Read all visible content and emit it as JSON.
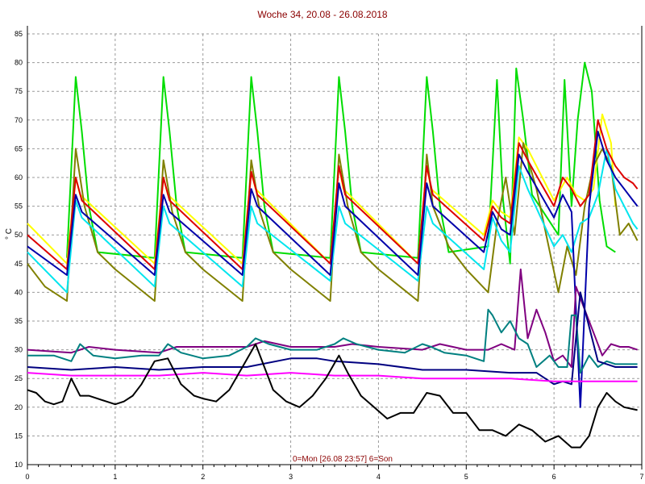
{
  "chart_data": {
    "type": "line",
    "title": "Woche 34, 20.08 - 26.08.2018",
    "xlabel": "0=Mon [26.08 23:57] 6=Son",
    "ylabel": "° C",
    "xlim": [
      0,
      7
    ],
    "ylim": [
      10,
      85
    ],
    "x_ticks": [
      "0",
      "1",
      "2",
      "3",
      "4",
      "5",
      "6",
      "7"
    ],
    "y_ticks": [
      "10",
      "15",
      "20",
      "25",
      "30",
      "35",
      "40",
      "45",
      "50",
      "55",
      "60",
      "65",
      "70",
      "75",
      "80",
      "85"
    ],
    "grid": true,
    "series": [
      {
        "color": "#00dd00",
        "x": [
          0.45,
          0.55,
          0.62,
          0.7,
          0.8,
          1.45,
          1.55,
          1.62,
          1.7,
          1.8,
          2.45,
          2.55,
          2.62,
          2.7,
          2.8,
          3.45,
          3.55,
          3.62,
          3.7,
          3.8,
          4.45,
          4.55,
          4.62,
          4.7,
          4.8,
          5.25,
          5.35,
          5.42,
          5.5,
          5.57,
          5.65,
          5.75,
          6.05,
          6.12,
          6.2,
          6.27,
          6.35,
          6.43,
          6.52,
          6.6,
          6.7
        ],
        "y": [
          46,
          77.5,
          68,
          55,
          47,
          46,
          77.5,
          68,
          55,
          47,
          46,
          77.5,
          68,
          55,
          47,
          46,
          77.5,
          68,
          55,
          47,
          46,
          77.5,
          68,
          55,
          47,
          48,
          77,
          56,
          45,
          79,
          70,
          57,
          50,
          77,
          55,
          70,
          80,
          75,
          56,
          48,
          47
        ]
      },
      {
        "color": "#ffff00",
        "x": [
          0,
          0.45,
          0.55,
          0.6,
          1.45,
          1.55,
          1.6,
          2.45,
          2.55,
          2.6,
          3.45,
          3.55,
          3.6,
          4.45,
          4.55,
          4.6,
          5.2,
          5.3,
          5.4,
          5.5,
          5.6,
          5.7,
          6.0,
          6.15,
          6.25,
          6.35,
          6.45,
          6.55,
          6.65,
          6.7
        ],
        "y": [
          52,
          45,
          60,
          57,
          45,
          60,
          57,
          45,
          61,
          58,
          45,
          62,
          58,
          45,
          62,
          58,
          50,
          56,
          54,
          53,
          67,
          65,
          56,
          60,
          57,
          56,
          58,
          71,
          66,
          55
        ]
      },
      {
        "color": "#808000",
        "x": [
          0,
          0.2,
          0.45,
          0.55,
          0.65,
          0.8,
          1.0,
          1.45,
          1.55,
          1.65,
          1.8,
          2.0,
          2.45,
          2.55,
          2.65,
          2.8,
          3.0,
          3.45,
          3.55,
          3.65,
          3.8,
          4.0,
          4.45,
          4.55,
          4.62,
          4.8,
          5.0,
          5.25,
          5.35,
          5.45,
          5.55,
          5.65,
          5.8,
          6.05,
          6.15,
          6.25,
          6.35,
          6.45,
          6.55,
          6.65,
          6.75,
          6.85,
          6.95
        ],
        "y": [
          45,
          41,
          38.5,
          65,
          55,
          47,
          44,
          38.5,
          63,
          54,
          47,
          44,
          38.5,
          63,
          54,
          47,
          44,
          38.5,
          64,
          55,
          47,
          44,
          38.5,
          64,
          55,
          48,
          44,
          40,
          52,
          60,
          50,
          66,
          58,
          40,
          48,
          43,
          55,
          62,
          65,
          62,
          50,
          52,
          49
        ]
      },
      {
        "color": "#00e5ee",
        "x": [
          0,
          0.45,
          0.55,
          0.62,
          1.45,
          1.55,
          1.62,
          2.45,
          2.55,
          2.62,
          3.45,
          3.55,
          3.62,
          4.45,
          4.55,
          4.62,
          5.2,
          5.3,
          5.4,
          5.5,
          5.6,
          5.7,
          6.0,
          6.1,
          6.2,
          6.3,
          6.4,
          6.5,
          6.6,
          6.7,
          6.8,
          6.9,
          6.95
        ],
        "y": [
          47,
          40,
          56,
          53,
          41,
          55,
          52,
          41,
          55,
          52,
          42,
          55,
          52,
          42,
          55,
          52,
          44,
          53,
          49,
          47,
          62,
          58,
          48,
          50,
          47,
          52,
          53,
          57,
          65,
          58,
          55,
          52,
          51
        ]
      },
      {
        "color": "#dd0000",
        "x": [
          0,
          0.45,
          0.55,
          0.62,
          1.45,
          1.55,
          1.62,
          2.45,
          2.55,
          2.62,
          3.45,
          3.55,
          3.62,
          4.45,
          4.55,
          4.62,
          5.2,
          5.3,
          5.4,
          5.5,
          5.6,
          5.7,
          6.0,
          6.1,
          6.2,
          6.3,
          6.4,
          6.5,
          6.6,
          6.7,
          6.8,
          6.9,
          6.95
        ],
        "y": [
          50,
          44,
          60,
          56,
          44,
          60,
          56,
          44,
          61,
          57,
          45,
          62,
          57,
          45,
          62,
          57,
          49,
          55,
          53,
          52,
          66,
          63,
          55,
          60,
          58,
          55,
          57,
          70,
          65,
          62,
          60,
          59,
          58
        ]
      },
      {
        "color": "#0000aa",
        "x": [
          0,
          0.45,
          0.55,
          0.62,
          1.45,
          1.55,
          1.62,
          2.45,
          2.55,
          2.62,
          3.45,
          3.55,
          3.62,
          4.45,
          4.55,
          4.62,
          5.2,
          5.3,
          5.4,
          5.5,
          5.6,
          5.7,
          6.0,
          6.1,
          6.2,
          6.3,
          6.4,
          6.5,
          6.6,
          6.7,
          6.8,
          6.9,
          6.95
        ],
        "y": [
          48,
          43,
          57,
          54,
          43,
          57,
          54,
          43,
          58,
          55,
          43,
          59,
          55,
          43,
          59,
          55,
          47,
          54,
          51,
          50,
          64,
          61,
          53,
          57,
          54,
          20,
          55,
          68,
          63,
          60,
          58,
          56,
          55
        ]
      },
      {
        "color": "#800080",
        "x": [
          0,
          0.5,
          0.7,
          1.0,
          1.5,
          1.7,
          2.0,
          2.5,
          2.7,
          3.0,
          3.5,
          3.7,
          4.0,
          4.5,
          4.7,
          5.0,
          5.25,
          5.4,
          5.55,
          5.62,
          5.7,
          5.8,
          5.9,
          6.0,
          6.1,
          6.2,
          6.25,
          6.35,
          6.45,
          6.55,
          6.65,
          6.75,
          6.85,
          6.95
        ],
        "y": [
          30,
          29.5,
          30.5,
          30,
          29.5,
          30.5,
          30.5,
          30.5,
          31.5,
          30.5,
          30.5,
          31,
          30.5,
          30,
          31,
          30,
          30,
          31,
          30,
          44,
          32,
          37,
          33,
          28,
          29,
          27,
          41,
          37,
          33,
          29,
          31,
          30.5,
          30.5,
          30
        ]
      },
      {
        "color": "#008080",
        "x": [
          0,
          0.3,
          0.5,
          0.6,
          0.75,
          1.0,
          1.3,
          1.5,
          1.6,
          1.75,
          2.0,
          2.3,
          2.5,
          2.6,
          2.75,
          3.0,
          3.3,
          3.5,
          3.6,
          3.75,
          4.0,
          4.3,
          4.5,
          4.6,
          4.75,
          5.0,
          5.2,
          5.25,
          5.3,
          5.4,
          5.5,
          5.6,
          5.7,
          5.8,
          5.95,
          6.05,
          6.15,
          6.2,
          6.25,
          6.3,
          6.4,
          6.5,
          6.6,
          6.7,
          6.8,
          6.9,
          6.95
        ],
        "y": [
          29,
          29,
          28,
          31,
          29,
          28.5,
          29,
          29,
          31,
          29.5,
          28.5,
          29,
          30.5,
          32,
          31,
          30,
          30,
          31,
          32,
          31,
          30,
          29.5,
          31,
          30.5,
          29.5,
          29,
          28,
          37,
          36,
          33,
          35,
          32,
          31,
          27,
          29,
          27,
          27,
          36,
          36,
          26,
          29,
          27,
          28,
          27.5,
          27.5,
          27.5,
          27.5
        ]
      },
      {
        "color": "#000080",
        "x": [
          0,
          0.5,
          1.0,
          1.5,
          2.0,
          2.5,
          3.0,
          3.3,
          3.5,
          4.0,
          4.5,
          5.0,
          5.5,
          5.8,
          6.0,
          6.1,
          6.2,
          6.3,
          6.5,
          6.7,
          6.95
        ],
        "y": [
          27,
          26.5,
          27,
          26.5,
          27,
          27,
          28.5,
          28.5,
          28,
          27.5,
          26.5,
          26.5,
          26,
          26,
          24,
          24.5,
          24,
          40,
          28,
          27,
          27
        ]
      },
      {
        "color": "#ff00ff",
        "x": [
          0,
          0.5,
          1.0,
          1.5,
          2.0,
          2.5,
          3.0,
          3.5,
          4.0,
          4.5,
          5.0,
          5.5,
          6.0,
          6.5,
          6.95
        ],
        "y": [
          26,
          25.5,
          25.5,
          25.5,
          26,
          25.5,
          26,
          25.5,
          25.5,
          25,
          25,
          25,
          24.5,
          24.5,
          24.5
        ]
      },
      {
        "color": "#000000",
        "x": [
          0,
          0.1,
          0.2,
          0.3,
          0.4,
          0.5,
          0.6,
          0.7,
          0.9,
          1.0,
          1.1,
          1.2,
          1.3,
          1.45,
          1.6,
          1.75,
          1.9,
          2.0,
          2.15,
          2.3,
          2.45,
          2.6,
          2.7,
          2.8,
          2.95,
          3.1,
          3.25,
          3.4,
          3.55,
          3.65,
          3.8,
          3.95,
          4.1,
          4.25,
          4.4,
          4.55,
          4.7,
          4.85,
          5.0,
          5.15,
          5.3,
          5.45,
          5.6,
          5.75,
          5.9,
          6.05,
          6.2,
          6.3,
          6.4,
          6.5,
          6.6,
          6.7,
          6.8,
          6.95
        ],
        "y": [
          23,
          22.5,
          21,
          20.5,
          21,
          25,
          22,
          22,
          21,
          20.5,
          21,
          22,
          24,
          28,
          28.5,
          24,
          22,
          21.5,
          21,
          23,
          27,
          31,
          27,
          23,
          21,
          20,
          22,
          25,
          29,
          26,
          22,
          20,
          18,
          19,
          19,
          22.5,
          22,
          19,
          19,
          16,
          16,
          15,
          17,
          16,
          14,
          15,
          13,
          13,
          15,
          20,
          22.5,
          21,
          20,
          19.5
        ]
      }
    ]
  }
}
